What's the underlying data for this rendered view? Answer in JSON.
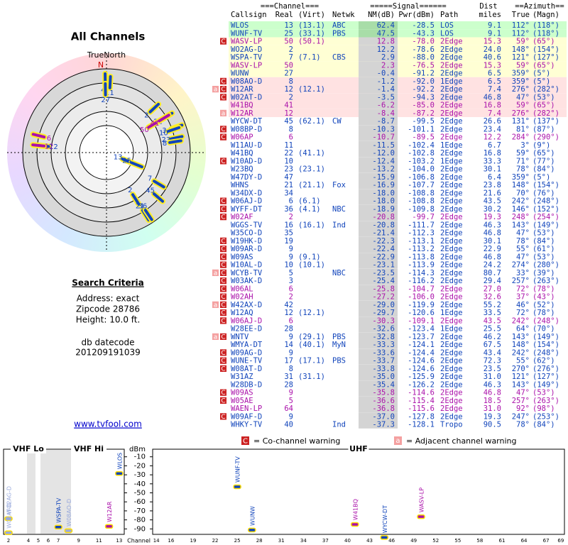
{
  "left": {
    "title": "All Channels",
    "north_label": "TrueNorth",
    "north_mark": "N",
    "search": {
      "title": "Search Criteria",
      "address": "Address: exact",
      "zipcode": "Zipcode 28786",
      "height": "Height: 10.0 ft.",
      "db_label": "db datecode",
      "db_value": "201209191039"
    },
    "link": "www.tvfool.com"
  },
  "polar": {
    "items": [
      {
        "label": "47",
        "azimuth": 359,
        "nm": -15.9,
        "color": "#1144bb"
      },
      {
        "label": "11",
        "azimuth": 3,
        "nm": -11.5,
        "color": "#1144bb"
      },
      {
        "label": "27",
        "azimuth": 359,
        "nm": -0.4,
        "color": "#1144bb"
      },
      {
        "label": "2",
        "azimuth": 47,
        "nm": -3.5,
        "color": "#1144bb"
      },
      {
        "label": "22",
        "azimuth": 59,
        "nm": -12.0,
        "color": "#1144bb"
      },
      {
        "label": "50",
        "azimuth": 59,
        "nm": 12.8,
        "color": "#aa11aa"
      },
      {
        "label": "41",
        "azimuth": 59,
        "nm": -6.2,
        "color": "#aa11aa"
      },
      {
        "label": "34",
        "azimuth": 70,
        "nm": -18.0,
        "color": "#1144bb"
      },
      {
        "label": "10",
        "azimuth": 71,
        "nm": -12.4,
        "color": "#1144bb"
      },
      {
        "label": "23",
        "azimuth": 78,
        "nm": -13.2,
        "color": "#1144bb"
      },
      {
        "label": "8",
        "azimuth": 81,
        "nm": -10.3,
        "color": "#1144bb"
      },
      {
        "label": "12",
        "azimuth": 276,
        "nm": -1.4,
        "color": "#1144bb"
      },
      {
        "label": "12",
        "azimuth": 276,
        "nm": -8.4,
        "color": "#aa11aa"
      },
      {
        "label": "6",
        "azimuth": 284,
        "nm": -10.7,
        "color": "#aa11aa"
      },
      {
        "label": "13",
        "azimuth": 112,
        "nm": 62.4,
        "color": "#1144bb"
      },
      {
        "label": "25",
        "azimuth": 112,
        "nm": 47.5,
        "color": "#1144bb"
      },
      {
        "label": "7",
        "azimuth": 121,
        "nm": 2.9,
        "color": "#1144bb"
      },
      {
        "label": "45",
        "azimuth": 131,
        "nm": -8.7,
        "color": "#1144bb"
      },
      {
        "label": "2",
        "azimuth": 148,
        "nm": 12.2,
        "color": "#1144bb"
      },
      {
        "label": "21",
        "azimuth": 148,
        "nm": -16.9,
        "color": "#1144bb"
      },
      {
        "label": "36",
        "azimuth": 146,
        "nm": -18.9,
        "color": "#1144bb"
      }
    ]
  },
  "table": {
    "groups": [
      "===Channel===",
      "=====Signal======",
      "Dist",
      "==Azimuth=="
    ],
    "columns": [
      "Callsign",
      "Real",
      "(Virt)",
      "Netwk",
      "NM(dB)",
      "Pwr(dBm)",
      "Path",
      "miles",
      "True",
      "(Magn)"
    ],
    "rows": [
      [
        null,
        "WLOS",
        "13",
        "(13.1)",
        "ABC",
        "62.4",
        "-28.5",
        "LOS",
        "9.1",
        "112°",
        "(118°)",
        "#1144bb"
      ],
      [
        null,
        "WUNF-TV",
        "25",
        "(33.1)",
        "PBS",
        "47.5",
        "-43.3",
        "LOS",
        "9.1",
        "112°",
        "(118°)",
        "#1144bb"
      ],
      [
        [
          "C"
        ],
        "WASV-LP",
        "50",
        "(50.1)",
        null,
        "12.8",
        "-78.0",
        "2Edge",
        "15.3",
        "59°",
        "(65°)",
        "#aa11aa"
      ],
      [
        null,
        "WO2AG-D",
        "2",
        null,
        null,
        "12.2",
        "-78.6",
        "2Edge",
        "24.0",
        "148°",
        "(154°)",
        "#1144bb"
      ],
      [
        null,
        "WSPA-TV",
        "7",
        "(7.1)",
        "CBS",
        "2.9",
        "-88.0",
        "2Edge",
        "40.6",
        "121°",
        "(127°)",
        "#1144bb"
      ],
      [
        null,
        "WASV-LP",
        "50",
        null,
        null,
        "2.3",
        "-76.5",
        "2Edge",
        "15.3",
        "59°",
        "(65°)",
        "#aa11aa"
      ],
      [
        null,
        "WUNW",
        "27",
        null,
        null,
        "-0.4",
        "-91.2",
        "2Edge",
        "6.5",
        "359°",
        "(5°)",
        "#1144bb"
      ],
      [
        [
          "C"
        ],
        "W08AO-D",
        "8",
        null,
        null,
        "-1.2",
        "-92.0",
        "1Edge",
        "6.5",
        "359°",
        "(5°)",
        "#1144bb"
      ],
      [
        [
          "a",
          "C"
        ],
        "W12AR",
        "12",
        "(12.1)",
        null,
        "-1.4",
        "-92.2",
        "2Edge",
        "7.4",
        "276°",
        "(282°)",
        "#1144bb"
      ],
      [
        [
          "C"
        ],
        "W02AT-D",
        "2",
        null,
        null,
        "-3.5",
        "-94.3",
        "2Edge",
        "46.8",
        "47°",
        "(53°)",
        "#1144bb"
      ],
      [
        null,
        "W41BQ",
        "41",
        null,
        null,
        "-6.2",
        "-85.0",
        "2Edge",
        "16.8",
        "59°",
        "(65°)",
        "#aa11aa"
      ],
      [
        [
          "a"
        ],
        "W12AR",
        "12",
        null,
        null,
        "-8.4",
        "-87.2",
        "2Edge",
        "7.4",
        "276°",
        "(282°)",
        "#aa11aa"
      ],
      [
        null,
        "WYCW-DT",
        "45",
        "(62.1)",
        "CW",
        "-8.7",
        "-99.5",
        "2Edge",
        "26.6",
        "131°",
        "(137°)",
        "#1144bb"
      ],
      [
        [
          "C"
        ],
        "W08BP-D",
        "8",
        null,
        null,
        "-10.3",
        "-101.1",
        "2Edge",
        "23.4",
        "81°",
        "(87°)",
        "#1144bb"
      ],
      [
        [
          "C"
        ],
        "W06AP",
        "6",
        null,
        null,
        "-10.7",
        "-89.5",
        "2Edge",
        "12.2",
        "284°",
        "(290°)",
        "#aa11aa"
      ],
      [
        null,
        "W11AU-D",
        "11",
        null,
        null,
        "-11.5",
        "-102.4",
        "1Edge",
        "6.7",
        "3°",
        "(9°)",
        "#1144bb"
      ],
      [
        null,
        "W41BQ",
        "22",
        "(41.1)",
        null,
        "-12.0",
        "-102.8",
        "2Edge",
        "16.8",
        "59°",
        "(65°)",
        "#1144bb"
      ],
      [
        [
          "C"
        ],
        "W10AD-D",
        "10",
        null,
        null,
        "-12.4",
        "-103.2",
        "1Edge",
        "33.3",
        "71°",
        "(77°)",
        "#1144bb"
      ],
      [
        null,
        "W23BQ",
        "23",
        "(23.1)",
        null,
        "-13.2",
        "-104.0",
        "2Edge",
        "30.1",
        "78°",
        "(84°)",
        "#1144bb"
      ],
      [
        null,
        "W47DY-D",
        "47",
        null,
        null,
        "-15.9",
        "-106.8",
        "2Edge",
        "6.4",
        "359°",
        "(5°)",
        "#1144bb"
      ],
      [
        null,
        "WHNS",
        "21",
        "(21.1)",
        "Fox",
        "-16.9",
        "-107.7",
        "2Edge",
        "23.8",
        "148°",
        "(154°)",
        "#1144bb"
      ],
      [
        null,
        "W34DX-D",
        "34",
        null,
        null,
        "-18.0",
        "-108.8",
        "2Edge",
        "21.6",
        "70°",
        "(76°)",
        "#1144bb"
      ],
      [
        [
          "C"
        ],
        "W06AJ-D",
        "6",
        "(6.1)",
        null,
        "-18.0",
        "-108.8",
        "2Edge",
        "43.5",
        "242°",
        "(248°)",
        "#1144bb"
      ],
      [
        [
          "C"
        ],
        "WYFF-DT",
        "36",
        "(4.1)",
        "NBC",
        "-18.9",
        "-109.8",
        "2Edge",
        "30.2",
        "146°",
        "(152°)",
        "#1144bb"
      ],
      [
        [
          "C"
        ],
        "W02AF",
        "2",
        null,
        null,
        "-20.8",
        "-99.7",
        "2Edge",
        "19.3",
        "248°",
        "(254°)",
        "#aa11aa"
      ],
      [
        null,
        "WGGS-TV",
        "16",
        "(16.1)",
        "Ind",
        "-20.8",
        "-111.7",
        "2Edge",
        "46.3",
        "143°",
        "(149°)",
        "#1144bb"
      ],
      [
        null,
        "W35CO-D",
        "35",
        null,
        null,
        "-21.4",
        "-112.3",
        "2Edge",
        "46.8",
        "47°",
        "(53°)",
        "#1144bb"
      ],
      [
        [
          "C"
        ],
        "W19HK-D",
        "19",
        null,
        null,
        "-22.3",
        "-113.1",
        "2Edge",
        "30.1",
        "78°",
        "(84°)",
        "#1144bb"
      ],
      [
        [
          "C"
        ],
        "W09AR-D",
        "9",
        null,
        null,
        "-22.4",
        "-113.2",
        "2Edge",
        "22.9",
        "55°",
        "(61°)",
        "#1144bb"
      ],
      [
        [
          "C"
        ],
        "W09AS",
        "9",
        "(9.1)",
        null,
        "-22.9",
        "-113.8",
        "2Edge",
        "46.8",
        "47°",
        "(53°)",
        "#1144bb"
      ],
      [
        [
          "C"
        ],
        "W10AL-D",
        "10",
        "(10.1)",
        null,
        "-23.1",
        "-113.9",
        "2Edge",
        "24.2",
        "274°",
        "(280°)",
        "#1144bb"
      ],
      [
        [
          "a",
          "C"
        ],
        "WCYB-TV",
        "5",
        null,
        "NBC",
        "-23.5",
        "-114.3",
        "2Edge",
        "80.7",
        "33°",
        "(39°)",
        "#1144bb"
      ],
      [
        [
          "C"
        ],
        "W03AK-D",
        "3",
        null,
        null,
        "-25.4",
        "-116.2",
        "2Edge",
        "29.4",
        "257°",
        "(263°)",
        "#1144bb"
      ],
      [
        [
          "C"
        ],
        "W06AL",
        "6",
        null,
        null,
        "-25.8",
        "-104.7",
        "2Edge",
        "27.0",
        "72°",
        "(78°)",
        "#aa11aa"
      ],
      [
        [
          "C"
        ],
        "W02AH",
        "2",
        null,
        null,
        "-27.2",
        "-106.0",
        "2Edge",
        "32.6",
        "37°",
        "(43°)",
        "#aa11aa"
      ],
      [
        [
          "a",
          "C"
        ],
        "W42AX-D",
        "42",
        null,
        null,
        "-29.0",
        "-119.9",
        "2Edge",
        "55.2",
        "46°",
        "(52°)",
        "#1144bb"
      ],
      [
        [
          "C"
        ],
        "W12AQ",
        "12",
        "(12.1)",
        null,
        "-29.7",
        "-120.6",
        "1Edge",
        "33.5",
        "72°",
        "(78°)",
        "#1144bb"
      ],
      [
        [
          "C"
        ],
        "W06AJ-D",
        "6",
        null,
        null,
        "-30.3",
        "-109.1",
        "2Edge",
        "43.5",
        "242°",
        "(248°)",
        "#aa11aa"
      ],
      [
        null,
        "W28EE-D",
        "28",
        null,
        null,
        "-32.6",
        "-123.4",
        "1Edge",
        "25.5",
        "64°",
        "(70°)",
        "#1144bb"
      ],
      [
        [
          "a",
          "C"
        ],
        "WNTV",
        "9",
        "(29.1)",
        "PBS",
        "-32.8",
        "-123.7",
        "2Edge",
        "46.2",
        "143°",
        "(149°)",
        "#1144bb"
      ],
      [
        null,
        "WMYA-DT",
        "14",
        "(40.1)",
        "MyN",
        "-33.3",
        "-124.1",
        "2Edge",
        "67.5",
        "148°",
        "(154°)",
        "#1144bb"
      ],
      [
        [
          "C"
        ],
        "W09AG-D",
        "9",
        null,
        null,
        "-33.6",
        "-124.4",
        "2Edge",
        "43.4",
        "242°",
        "(248°)",
        "#1144bb"
      ],
      [
        [
          "C"
        ],
        "WUNE-TV",
        "17",
        "(17.1)",
        "PBS",
        "-33.7",
        "-124.6",
        "2Edge",
        "72.3",
        "55°",
        "(62°)",
        "#1144bb"
      ],
      [
        [
          "C"
        ],
        "W08AT-D",
        "8",
        null,
        null,
        "-33.8",
        "-124.6",
        "2Edge",
        "23.5",
        "270°",
        "(276°)",
        "#1144bb"
      ],
      [
        null,
        "W31AZ",
        "31",
        "(31.1)",
        null,
        "-35.0",
        "-125.9",
        "2Edge",
        "31.0",
        "121°",
        "(127°)",
        "#1144bb"
      ],
      [
        null,
        "W28DB-D",
        "28",
        null,
        null,
        "-35.4",
        "-126.2",
        "2Edge",
        "46.3",
        "143°",
        "(149°)",
        "#1144bb"
      ],
      [
        [
          "C"
        ],
        "W09AS",
        "9",
        null,
        null,
        "-35.8",
        "-114.6",
        "2Edge",
        "46.8",
        "47°",
        "(53°)",
        "#aa11aa"
      ],
      [
        [
          "C"
        ],
        "W05AE",
        "5",
        null,
        null,
        "-36.6",
        "-115.4",
        "2Edge",
        "18.5",
        "257°",
        "(263°)",
        "#aa11aa"
      ],
      [
        null,
        "WAEN-LP",
        "64",
        null,
        null,
        "-36.8",
        "-115.6",
        "2Edge",
        "31.0",
        "92°",
        "(98°)",
        "#aa11aa"
      ],
      [
        [
          "C"
        ],
        "W09AF-D",
        "9",
        null,
        null,
        "-37.0",
        "-127.8",
        "2Edge",
        "19.3",
        "247°",
        "(253°)",
        "#1144bb"
      ],
      [
        null,
        "WHKY-TV",
        "40",
        null,
        "Ind",
        "-37.3",
        "-128.1",
        "Tropo",
        "90.5",
        "78°",
        "(84°)",
        "#1144bb"
      ]
    ]
  },
  "legend": {
    "co_icon": "C",
    "co_text": "= Co-channel warning",
    "adj_icon": "a",
    "adj_text": "= Adjacent channel warning"
  },
  "spectrum": {
    "type": "bar",
    "unit": "dBm",
    "x_label": "Channel",
    "ylim": [
      0,
      -100
    ],
    "yticks": [
      -10,
      -20,
      -30,
      -40,
      -50,
      -60,
      -70,
      -80,
      -90
    ],
    "panels": [
      {
        "title": "VHF Lo",
        "xlim": [
          1.5,
          6.5
        ],
        "xticks": [
          2,
          4,
          5,
          6
        ]
      },
      {
        "title": "VHF Hi",
        "xlim": [
          6.5,
          13.5
        ],
        "xticks": [
          7,
          9,
          11,
          13
        ]
      },
      {
        "title": "UHF",
        "xlim": [
          13.5,
          69.5
        ],
        "xticks": [
          14,
          16,
          19,
          22,
          25,
          28,
          31,
          34,
          37,
          40,
          43,
          46,
          49,
          52,
          55,
          58,
          61,
          64,
          67,
          69
        ]
      }
    ],
    "stations": [
      {
        "name": "WO2AG-D",
        "channel": 2,
        "value": -78.6,
        "color": "#99aadd"
      },
      {
        "name": "W02AT-D",
        "channel": 2,
        "value": -94.3,
        "color": "#99aadd"
      },
      {
        "name": "WSPA-TV",
        "channel": 7,
        "value": -88.0,
        "color": "#1144bb"
      },
      {
        "name": "W08AO-D",
        "channel": 8,
        "value": -92.0,
        "color": "#99aadd"
      },
      {
        "name": "W12AR",
        "channel": 12,
        "value": -87.2,
        "color": "#aa11aa"
      },
      {
        "name": "WLOS",
        "channel": 13,
        "value": -28.5,
        "color": "#1144bb"
      },
      {
        "name": "WUNF-TV",
        "channel": 25,
        "value": -43.3,
        "color": "#1144bb"
      },
      {
        "name": "WUNW",
        "channel": 27,
        "value": -91.2,
        "color": "#1144bb"
      },
      {
        "name": "W41BQ",
        "channel": 41,
        "value": -85.0,
        "color": "#aa11aa"
      },
      {
        "name": "WYCW-DT",
        "channel": 45,
        "value": -99.5,
        "color": "#1144bb"
      },
      {
        "name": "WASV-LP",
        "channel": 50,
        "value": -76.5,
        "color": "#aa11aa"
      }
    ]
  }
}
